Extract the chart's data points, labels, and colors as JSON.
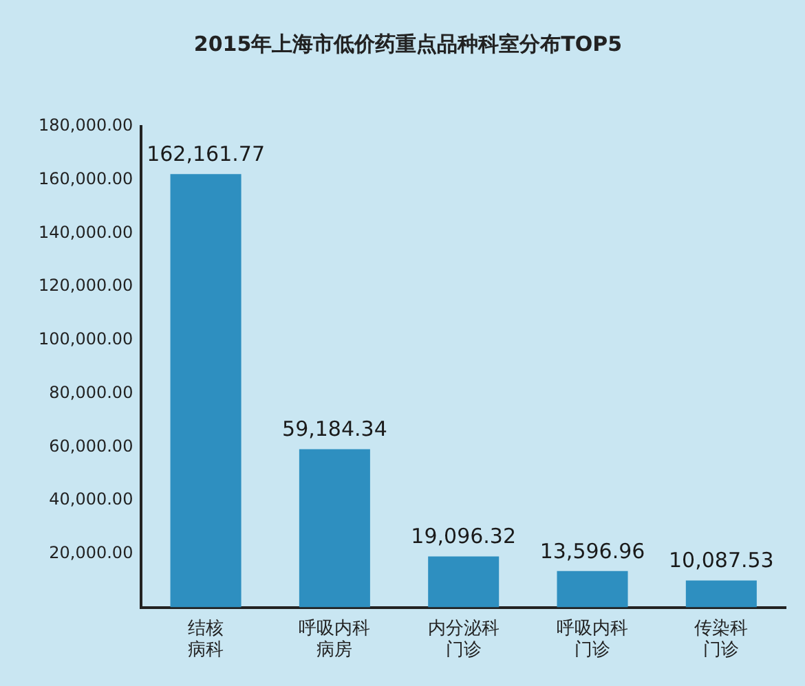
{
  "chart_data": {
    "type": "bar",
    "title": "2015年上海市低价药重点品种科室分布TOP5",
    "categories": [
      "结核病科",
      "呼吸内科病房",
      "内分泌科门诊",
      "呼吸内科门诊",
      "传染科门诊"
    ],
    "values": [
      162161.77,
      59184.34,
      19096.32,
      13596.96,
      10087.53
    ],
    "value_labels": [
      "162,161.77",
      "59,184.34",
      "19,096.32",
      "13,596.96",
      "10,087.53"
    ],
    "color": "#2e8fc0",
    "ylim": [
      0,
      180000
    ],
    "yticks": [
      {
        "value": 20000,
        "label": "20,000.00"
      },
      {
        "value": 40000,
        "label": "40,000.00"
      },
      {
        "value": 60000,
        "label": "60,000.00"
      },
      {
        "value": 80000,
        "label": "80,000.00"
      },
      {
        "value": 100000,
        "label": "100,000.00"
      },
      {
        "value": 120000,
        "label": "120,000.00"
      },
      {
        "value": 140000,
        "label": "140,000.00"
      },
      {
        "value": 160000,
        "label": "160,000.00"
      },
      {
        "value": 180000,
        "label": "180,000.00"
      }
    ],
    "grid": false
  }
}
